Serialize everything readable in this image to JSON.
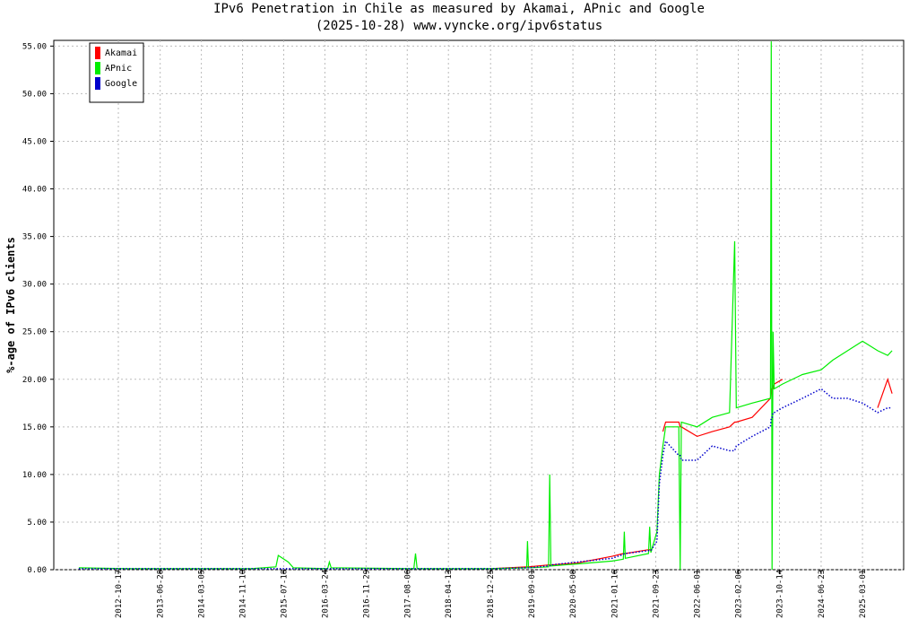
{
  "chart_data": {
    "type": "line",
    "title": "IPv6 Penetration in Chile as measured by Akamai, APnic and Google",
    "subtitle": "(2025-10-28) www.vyncke.org/ipv6status",
    "y_label": "%-age of IPv6 clients",
    "grid": true,
    "legend": "top-left",
    "xlim": [
      "2011-09-21",
      "2025-11-06"
    ],
    "xticks": [
      "2012-10-17",
      "2013-06-28",
      "2014-03-05",
      "2014-11-10",
      "2015-07-18",
      "2016-03-24",
      "2016-11-29",
      "2017-08-06",
      "2018-04-13",
      "2018-12-25",
      "2019-09-01",
      "2020-05-08",
      "2021-01-16",
      "2021-09-23",
      "2022-06-01",
      "2023-02-06",
      "2023-10-14",
      "2024-06-23",
      "2025-03-01"
    ],
    "ylim": [
      0,
      55.6
    ],
    "yticks": [
      {
        "value": 0,
        "label": "0.00"
      },
      {
        "value": 5,
        "label": "5.00"
      },
      {
        "value": 10,
        "label": "10.00"
      },
      {
        "value": 15,
        "label": "15.00"
      },
      {
        "value": 20,
        "label": "20.00"
      },
      {
        "value": 25,
        "label": "25.00"
      },
      {
        "value": 30,
        "label": "30.00"
      },
      {
        "value": 35,
        "label": "35.00"
      },
      {
        "value": 40,
        "label": "40.00"
      },
      {
        "value": 45,
        "label": "45.00"
      },
      {
        "value": 50,
        "label": "50.00"
      },
      {
        "value": 55,
        "label": "55.00"
      }
    ],
    "x": [
      "2012-02-20",
      "2013-01-01",
      "2014-01-01",
      "2015-01-01",
      "2015-06-01",
      "2015-06-15",
      "2015-08-15",
      "2015-09-15",
      "2016-04-10",
      "2016-04-20",
      "2016-05-01",
      "2017-09-15",
      "2017-09-25",
      "2017-10-05",
      "2018-12-25",
      "2019-08-01",
      "2019-08-06",
      "2019-08-12",
      "2019-12-12",
      "2019-12-19",
      "2019-12-26",
      "2020-06-01",
      "2021-01-01",
      "2021-03-10",
      "2021-03-16",
      "2021-03-22",
      "2021-08-10",
      "2021-08-17",
      "2021-08-24",
      "2021-09-30",
      "2021-10-15",
      "2021-11-05",
      "2021-11-22",
      "2022-02-10",
      "2022-02-18",
      "2022-02-25",
      "2022-06-01",
      "2022-09-01",
      "2022-12-15",
      "2023-01-15",
      "2023-01-25",
      "2023-05-01",
      "2023-08-20",
      "2023-08-25",
      "2023-08-30",
      "2023-09-05",
      "2023-09-12",
      "2023-11-01",
      "2024-03-01",
      "2024-06-23",
      "2024-09-01",
      "2024-12-01",
      "2025-03-01",
      "2025-06-01",
      "2025-08-01",
      "2025-08-28"
    ],
    "series": [
      {
        "name": "Akamai",
        "color": "#ff0000",
        "values": [
          null,
          null,
          null,
          null,
          null,
          null,
          null,
          null,
          null,
          null,
          null,
          null,
          null,
          null,
          0.1,
          0.3,
          0.3,
          0.3,
          0.5,
          0.5,
          0.5,
          0.7,
          1.4,
          1.7,
          1.7,
          1.7,
          2.1,
          2.1,
          2.0,
          null,
          null,
          14.5,
          15.5,
          15.5,
          15,
          15,
          14,
          14.5,
          15,
          15.5,
          15.5,
          16,
          18,
          19,
          19,
          19,
          19.5,
          20,
          null,
          null,
          null,
          null,
          null,
          17,
          20,
          18.5
        ]
      },
      {
        "name": "APnic",
        "color": "#00ee00",
        "values": [
          0.2,
          0.1,
          0.1,
          0.1,
          0.3,
          1.5,
          0.8,
          0.2,
          0.1,
          0.8,
          0.2,
          0.1,
          1.7,
          0.1,
          0.1,
          0.2,
          3,
          0.2,
          0.3,
          10,
          0.4,
          0.6,
          0.9,
          1.1,
          4,
          1.2,
          1.7,
          4.5,
          1.8,
          4,
          10,
          13,
          15,
          15,
          0,
          15.5,
          15,
          16,
          16.5,
          34.5,
          17,
          17.5,
          18,
          55.5,
          0,
          25,
          19,
          19.5,
          20.5,
          21,
          22,
          23,
          24,
          23,
          22.5,
          23
        ]
      },
      {
        "name": "Google",
        "color": "#0000cc",
        "values": [
          0.1,
          0.1,
          0.1,
          0.1,
          0.1,
          0.1,
          0.1,
          0.1,
          0.1,
          0.1,
          0.1,
          0.1,
          0.1,
          0.1,
          0.1,
          0.2,
          0.2,
          0.2,
          0.4,
          0.4,
          0.5,
          0.8,
          1.2,
          1.6,
          1.7,
          1.7,
          2.0,
          2.0,
          2.0,
          3,
          9,
          12,
          13.5,
          12,
          12,
          11.5,
          11.5,
          13,
          12.5,
          12.5,
          13,
          14,
          15,
          16,
          16,
          16.5,
          16.5,
          17,
          18,
          19,
          18,
          18,
          17.5,
          16.5,
          17,
          17
        ]
      }
    ]
  }
}
